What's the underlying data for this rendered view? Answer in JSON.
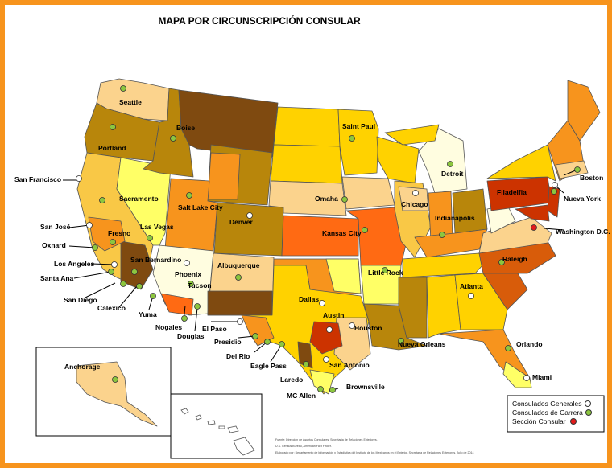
{
  "title": "MAPA POR CIRCUNSCRIPCIÓN CONSULAR",
  "colors": {
    "frame": "#f7941d",
    "general_consulate_dot": "#ffffff",
    "career_consulate_dot": "#8cc63f",
    "consular_section_dot": "#e31b1b",
    "palette": [
      "#fffde0",
      "#ffff66",
      "#ffd200",
      "#f9c846",
      "#fbd38d",
      "#f7941d",
      "#ff6a13",
      "#d85c0a",
      "#b8860b",
      "#7f4a10",
      "#cc3300"
    ]
  },
  "cities": [
    {
      "name": "Seattle",
      "type": "career"
    },
    {
      "name": "Portland",
      "type": "career"
    },
    {
      "name": "Boise",
      "type": "career"
    },
    {
      "name": "San Francisco",
      "type": "general"
    },
    {
      "name": "Sacramento",
      "type": "career"
    },
    {
      "name": "San José",
      "type": "general"
    },
    {
      "name": "Fresno",
      "type": "career"
    },
    {
      "name": "Oxnard",
      "type": "career"
    },
    {
      "name": "Los Angeles",
      "type": "general"
    },
    {
      "name": "Santa Ana",
      "type": "career"
    },
    {
      "name": "San Bernardino",
      "type": "career"
    },
    {
      "name": "San Diego",
      "type": "career"
    },
    {
      "name": "Calexico",
      "type": "career"
    },
    {
      "name": "Yuma",
      "type": "career"
    },
    {
      "name": "Nogales",
      "type": "career"
    },
    {
      "name": "Tucson",
      "type": "career"
    },
    {
      "name": "Douglas",
      "type": "career"
    },
    {
      "name": "Phoenix",
      "type": "general"
    },
    {
      "name": "Las Vegas",
      "type": "career"
    },
    {
      "name": "Salt Lake City",
      "type": "career"
    },
    {
      "name": "Denver",
      "type": "general"
    },
    {
      "name": "Albuquerque",
      "type": "career"
    },
    {
      "name": "El Paso",
      "type": "general"
    },
    {
      "name": "Presidio",
      "type": "career"
    },
    {
      "name": "Del Rio",
      "type": "career"
    },
    {
      "name": "Eagle Pass",
      "type": "career"
    },
    {
      "name": "Laredo",
      "type": "career"
    },
    {
      "name": "San Antonio",
      "type": "general"
    },
    {
      "name": "MC Allen",
      "type": "career"
    },
    {
      "name": "Brownsville",
      "type": "career"
    },
    {
      "name": "Austin",
      "type": "general"
    },
    {
      "name": "Dallas",
      "type": "general"
    },
    {
      "name": "Houston",
      "type": "general"
    },
    {
      "name": "Little Rock",
      "type": "career"
    },
    {
      "name": "Kansas City",
      "type": "career"
    },
    {
      "name": "Omaha",
      "type": "career"
    },
    {
      "name": "Saint Paul",
      "type": "career"
    },
    {
      "name": "Chicago",
      "type": "general"
    },
    {
      "name": "Detroit",
      "type": "career"
    },
    {
      "name": "Indianapolis",
      "type": "career"
    },
    {
      "name": "Raleigh",
      "type": "career"
    },
    {
      "name": "Atlanta",
      "type": "general"
    },
    {
      "name": "Nueva Orleans",
      "type": "career"
    },
    {
      "name": "Orlando",
      "type": "career"
    },
    {
      "name": "Miami",
      "type": "general"
    },
    {
      "name": "Filadelfia",
      "type": "career"
    },
    {
      "name": "Nueva York",
      "type": "general"
    },
    {
      "name": "Washington D.C.",
      "type": "consular"
    },
    {
      "name": "Boston",
      "type": "career"
    },
    {
      "name": "Anchorage",
      "type": "career"
    }
  ],
  "legend": {
    "items": [
      {
        "label": "Consulados Generales",
        "type": "general"
      },
      {
        "label": "Consulados de Carrera",
        "type": "career"
      },
      {
        "label": "Sección Consular",
        "type": "consular"
      }
    ]
  },
  "source": {
    "line1": "Fuente: Dirección de Asuntos Consulares, Secretaría de Relaciones Exteriores.",
    "line2": "U.S. Census Bureau, American Fact Finder.",
    "line3": "Elaborado por: Departamento de Información y Estadística del Instituto de los Mexicanos en el Exterior, Secretaría de Relaciones Exteriores. Julio de 2014"
  }
}
